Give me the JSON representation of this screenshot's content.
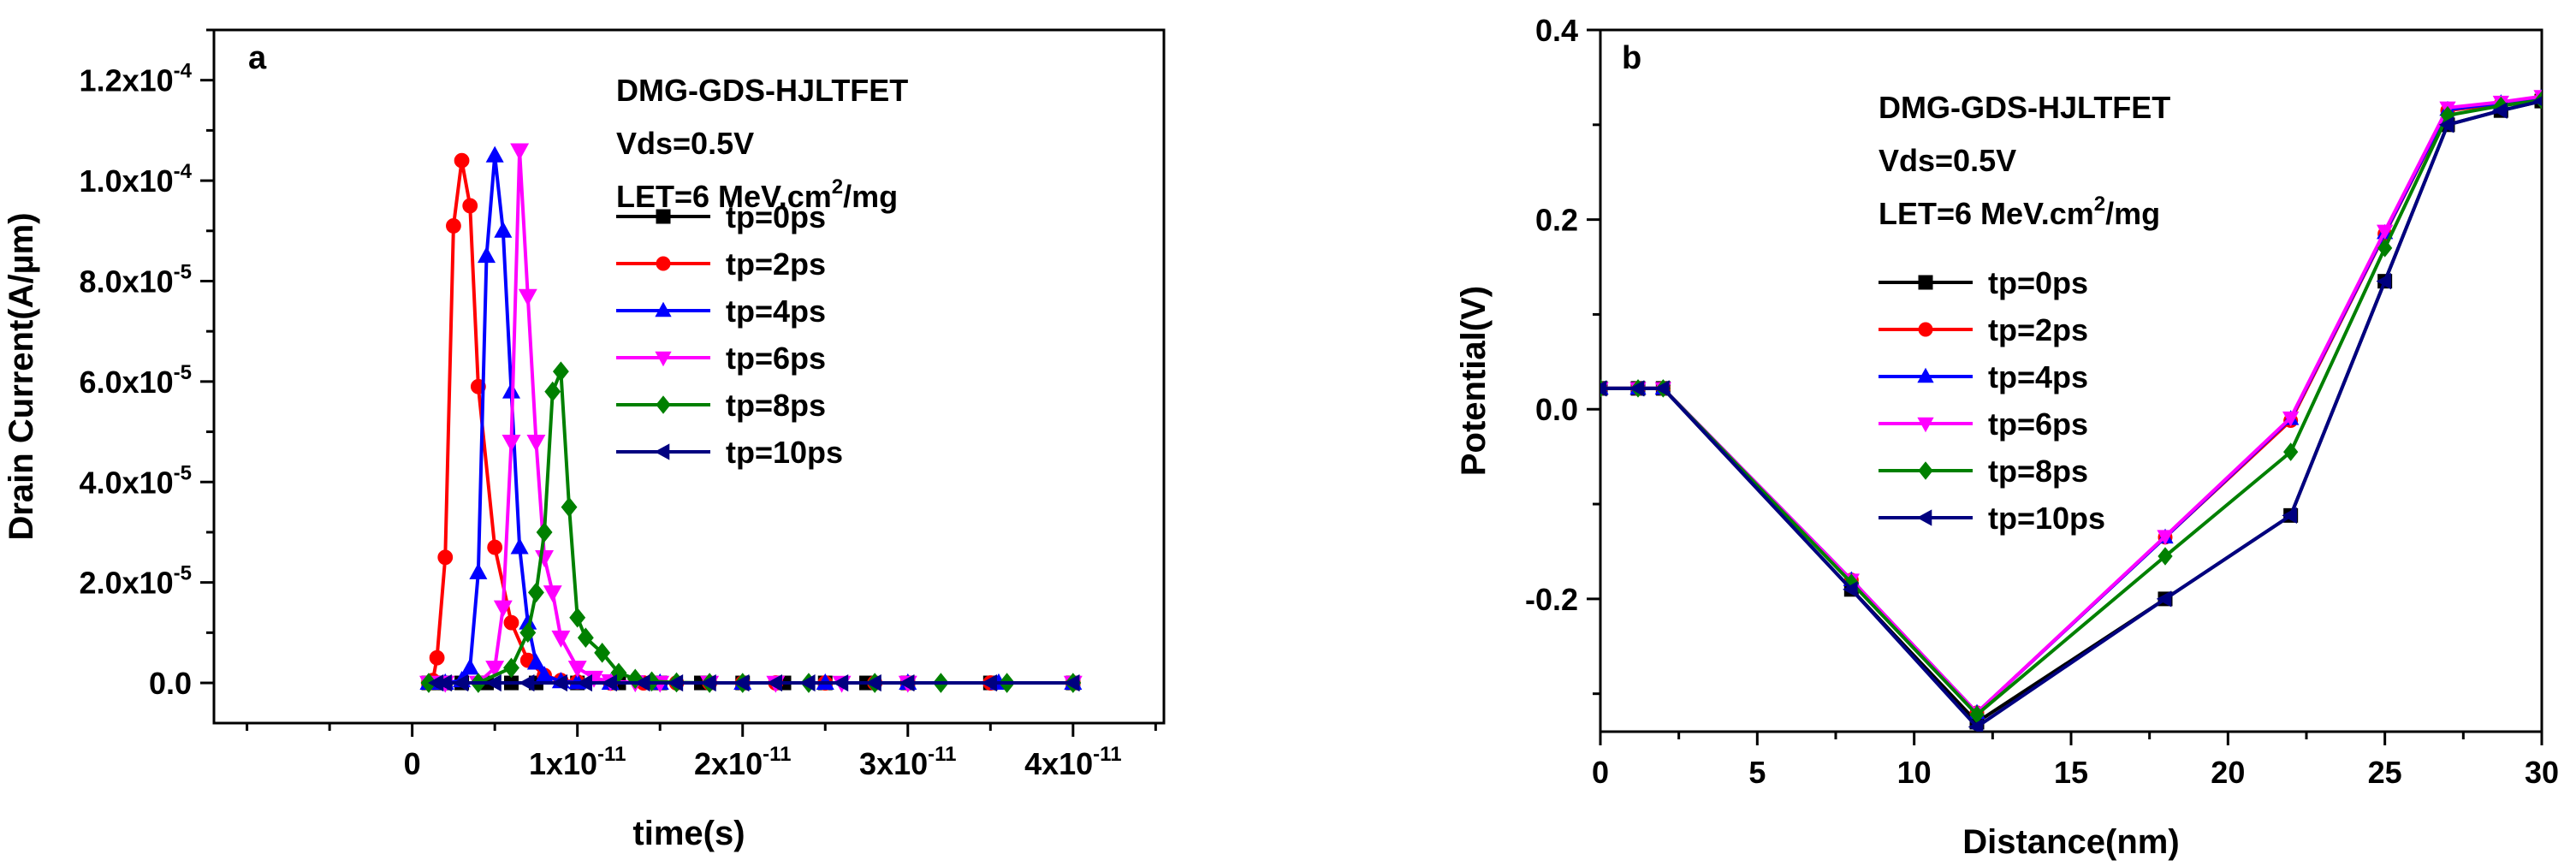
{
  "chart_data": [
    {
      "panel": "a",
      "type": "line",
      "xlabel": "time(s)",
      "ylabel": "Drain Current(A/µm)",
      "xlim": [
        -1.2e-11,
        4.55e-11
      ],
      "ylim": [
        -8e-06,
        0.00013
      ],
      "x_ticks": [
        {
          "value": 0,
          "label": "0"
        },
        {
          "value": 1e-11,
          "base": "1x10",
          "exp": "-11"
        },
        {
          "value": 2e-11,
          "base": "2x10",
          "exp": "-11"
        },
        {
          "value": 3e-11,
          "base": "3x10",
          "exp": "-11"
        },
        {
          "value": 4e-11,
          "base": "4x10",
          "exp": "-11"
        }
      ],
      "y_ticks": [
        {
          "value": 0,
          "label": "0.0"
        },
        {
          "value": 2e-05,
          "base": "2.0x10",
          "exp": "-5"
        },
        {
          "value": 4e-05,
          "base": "4.0x10",
          "exp": "-5"
        },
        {
          "value": 6e-05,
          "base": "6.0x10",
          "exp": "-5"
        },
        {
          "value": 8e-05,
          "base": "8.0x10",
          "exp": "-5"
        },
        {
          "value": 0.0001,
          "base": "1.0x10",
          "exp": "-4"
        },
        {
          "value": 0.00012,
          "base": "1.2x10",
          "exp": "-4"
        }
      ],
      "annotations": {
        "device": "DMG-GDS-HJLTFET",
        "vds": "Vds=0.5V",
        "let_prefix": "LET=6 MeV.cm",
        "let_sup": "2",
        "let_suffix": "/mg"
      },
      "series": [
        {
          "name": "tp=0ps",
          "color": "#000000",
          "marker": "square",
          "x": [
            1e-12,
            1.5e-12,
            2e-12,
            3e-12,
            4.5e-12,
            6e-12,
            7.5e-12,
            1e-11,
            1.25e-11,
            1.5e-11,
            1.75e-11,
            2e-11,
            2.25e-11,
            2.5e-11,
            2.75e-11,
            3e-11,
            3.5e-11,
            4e-11
          ],
          "y": [
            0,
            0,
            0,
            0,
            0,
            0,
            0,
            0,
            0,
            0,
            0,
            0,
            0,
            0,
            0,
            0,
            0,
            0
          ]
        },
        {
          "name": "tp=2ps",
          "color": "#ff0000",
          "marker": "circle",
          "x": [
            1e-12,
            1.25e-12,
            1.5e-12,
            2e-12,
            2.5e-12,
            3e-12,
            3.5e-12,
            4e-12,
            5e-12,
            6e-12,
            7e-12,
            8e-12,
            9e-12,
            1e-11,
            1.2e-11,
            1.4e-11,
            1.6e-11,
            1.8e-11,
            2e-11,
            2.2e-11,
            2.5e-11,
            2.8e-11,
            3e-11,
            3.5e-11,
            4e-11
          ],
          "y": [
            0,
            5e-07,
            5e-06,
            2.5e-05,
            9.1e-05,
            0.000104,
            9.5e-05,
            5.9e-05,
            2.7e-05,
            1.2e-05,
            4.5e-06,
            1.5e-06,
            5e-07,
            2e-07,
            0,
            0,
            0,
            0,
            0,
            0,
            0,
            0,
            0,
            0,
            0
          ]
        },
        {
          "name": "tp=4ps",
          "color": "#0000ff",
          "marker": "triangle-up",
          "x": [
            1e-12,
            2e-12,
            3e-12,
            3.5e-12,
            4e-12,
            4.5e-12,
            5e-12,
            5.5e-12,
            6e-12,
            6.5e-12,
            7e-12,
            7.5e-12,
            8e-12,
            9e-12,
            1e-11,
            1.2e-11,
            1.5e-11,
            2e-11,
            2.5e-11,
            3e-11,
            3.55e-11,
            4e-11
          ],
          "y": [
            0,
            0,
            5e-07,
            3e-06,
            2.2e-05,
            8.5e-05,
            0.000105,
            9e-05,
            5.8e-05,
            2.7e-05,
            1.2e-05,
            4e-06,
            1.5e-06,
            3e-07,
            1e-07,
            0,
            0,
            0,
            0,
            0,
            0,
            0
          ]
        },
        {
          "name": "tp=6ps",
          "color": "#ff00ff",
          "marker": "triangle-down",
          "x": [
            1e-12,
            2e-12,
            4e-12,
            5e-12,
            5.5e-12,
            6e-12,
            6.5e-12,
            7e-12,
            7.5e-12,
            8e-12,
            8.5e-12,
            9e-12,
            1e-11,
            1.1e-11,
            1.2e-11,
            1.35e-11,
            1.5e-11,
            1.8e-11,
            2.2e-11,
            2.6e-11,
            3e-11,
            4e-11
          ],
          "y": [
            0,
            0,
            0,
            3e-06,
            1.5e-05,
            4.8e-05,
            0.000106,
            7.7e-05,
            4.8e-05,
            2.5e-05,
            1.8e-05,
            9e-06,
            3e-06,
            1e-06,
            3e-07,
            1e-07,
            0,
            0,
            0,
            0,
            0,
            0
          ]
        },
        {
          "name": "tp=8ps",
          "color": "#008000",
          "marker": "diamond",
          "x": [
            1e-12,
            4e-12,
            6e-12,
            7e-12,
            7.5e-12,
            8e-12,
            8.5e-12,
            9e-12,
            9.5e-12,
            1e-11,
            1.05e-11,
            1.15e-11,
            1.25e-11,
            1.35e-11,
            1.45e-11,
            1.6e-11,
            1.8e-11,
            2e-11,
            2.4e-11,
            2.8e-11,
            3.2e-11,
            3.6e-11,
            4e-11
          ],
          "y": [
            0,
            0,
            3e-06,
            1e-05,
            1.8e-05,
            3e-05,
            5.8e-05,
            6.2e-05,
            3.5e-05,
            1.3e-05,
            9e-06,
            6e-06,
            2e-06,
            8e-07,
            3e-07,
            1e-07,
            0,
            0,
            0,
            0,
            0,
            0,
            0
          ]
        },
        {
          "name": "tp=10ps",
          "color": "#000080",
          "marker": "triangle-left",
          "x": [
            1.5e-12,
            2e-12,
            3e-12,
            5e-12,
            7e-12,
            9e-12,
            1.05e-11,
            1.2e-11,
            1.4e-11,
            1.6e-11,
            1.8e-11,
            2e-11,
            2.2e-11,
            2.4e-11,
            2.6e-11,
            2.8e-11,
            3e-11,
            3.5e-11,
            4e-11
          ],
          "y": [
            0,
            0,
            0,
            0,
            0,
            0,
            0,
            0,
            0,
            0,
            0,
            0,
            0,
            0,
            0,
            0,
            0,
            0,
            0
          ]
        }
      ]
    },
    {
      "panel": "b",
      "type": "line",
      "xlabel": "Distance(nm)",
      "ylabel": "Potential(V)",
      "xlim": [
        0,
        30
      ],
      "ylim": [
        -0.34,
        0.4
      ],
      "x_ticks": [
        {
          "value": 0,
          "label": "0"
        },
        {
          "value": 5,
          "label": "5"
        },
        {
          "value": 10,
          "label": "10"
        },
        {
          "value": 15,
          "label": "15"
        },
        {
          "value": 20,
          "label": "20"
        },
        {
          "value": 25,
          "label": "25"
        },
        {
          "value": 30,
          "label": "30"
        }
      ],
      "y_ticks": [
        {
          "value": -0.2,
          "label": "-0.2"
        },
        {
          "value": 0,
          "label": "0.0"
        },
        {
          "value": 0.2,
          "label": "0.2"
        },
        {
          "value": 0.4,
          "label": "0.4"
        }
      ],
      "annotations": {
        "device": "DMG-GDS-HJLTFET",
        "vds": "Vds=0.5V",
        "let_prefix": "LET=6 MeV.cm",
        "let_sup": "2",
        "let_suffix": "/mg"
      },
      "series": [
        {
          "name": "tp=0ps",
          "color": "#000000",
          "marker": "square",
          "x": [
            0,
            1.2,
            2,
            8,
            12,
            18,
            22,
            25,
            27,
            28.7,
            30
          ],
          "y": [
            0.022,
            0.022,
            0.022,
            -0.19,
            -0.33,
            -0.2,
            -0.112,
            0.135,
            0.3,
            0.315,
            0.325
          ]
        },
        {
          "name": "tp=2ps",
          "color": "#ff0000",
          "marker": "circle",
          "x": [
            0,
            1.2,
            2,
            8,
            12,
            18,
            22,
            25,
            27,
            28.7,
            30
          ],
          "y": [
            0.022,
            0.022,
            0.022,
            -0.18,
            -0.32,
            -0.135,
            -0.012,
            0.185,
            0.315,
            0.322,
            0.328
          ]
        },
        {
          "name": "tp=4ps",
          "color": "#0000ff",
          "marker": "triangle-up",
          "x": [
            0,
            1.2,
            2,
            8,
            12,
            18,
            22,
            25,
            27,
            28.7,
            30
          ],
          "y": [
            0.022,
            0.022,
            0.022,
            -0.18,
            -0.32,
            -0.135,
            -0.01,
            0.186,
            0.316,
            0.323,
            0.329
          ]
        },
        {
          "name": "tp=6ps",
          "color": "#ff00ff",
          "marker": "triangle-down",
          "x": [
            0,
            1.2,
            2,
            8,
            12,
            18,
            22,
            25,
            27,
            28.7,
            30
          ],
          "y": [
            0.022,
            0.022,
            0.022,
            -0.18,
            -0.32,
            -0.134,
            -0.009,
            0.188,
            0.318,
            0.324,
            0.33
          ]
        },
        {
          "name": "tp=8ps",
          "color": "#008000",
          "marker": "diamond",
          "x": [
            0,
            1.2,
            2,
            8,
            12,
            18,
            22,
            25,
            27,
            28.7,
            30
          ],
          "y": [
            0.022,
            0.022,
            0.022,
            -0.183,
            -0.322,
            -0.155,
            -0.045,
            0.17,
            0.31,
            0.32,
            0.326
          ]
        },
        {
          "name": "tp=10ps",
          "color": "#000080",
          "marker": "triangle-left",
          "x": [
            0,
            1.2,
            2,
            8,
            12,
            18,
            22,
            25,
            27,
            28.7,
            30
          ],
          "y": [
            0.022,
            0.022,
            0.022,
            -0.19,
            -0.335,
            -0.2,
            -0.112,
            0.135,
            0.3,
            0.315,
            0.325
          ]
        }
      ]
    }
  ]
}
